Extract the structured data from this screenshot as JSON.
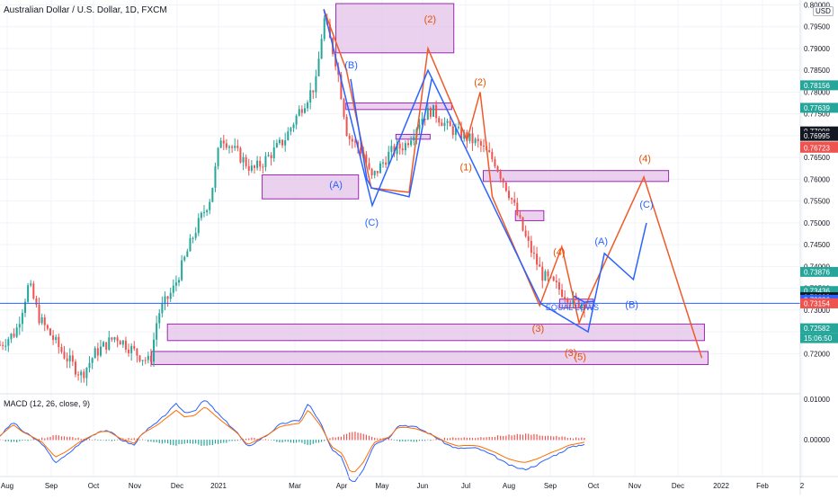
{
  "header": {
    "symbol_title": "Australian Dollar / U.S. Dollar, 1D, FXCM",
    "currency_badge": "USD"
  },
  "macd": {
    "title": "MACD (12, 26, close, 9)",
    "ticks": [
      "0.01000",
      "0.00000"
    ]
  },
  "colors": {
    "up_candle": "#26a69a",
    "down_candle": "#ef5350",
    "zone_fill": "#e1bee7",
    "zone_stroke": "#9c27b0",
    "orange_wave": "#f05a28",
    "blue_wave": "#2962ff",
    "wave_text_blue": "#2962ff",
    "wave_text_orange": "#e65100",
    "macd_line": "#2962ff",
    "signal_line": "#ff6d00",
    "horizontal_line": "#2962ff"
  },
  "chart_data": {
    "type": "candlestick",
    "y_range": [
      0.7112,
      0.8003
    ],
    "price_ticks": [
      "0.80000",
      "0.79500",
      "0.79000",
      "0.78500",
      "0.78000",
      "0.77500",
      "0.77000",
      "0.76500",
      "0.76000",
      "0.75500",
      "0.75000",
      "0.74500",
      "0.74000",
      "0.73500",
      "0.73000",
      "0.72500",
      "0.72000"
    ],
    "time_axis": [
      "Aug",
      "Sep",
      "Oct",
      "Nov",
      "Dec",
      "2021",
      "Mar",
      "Apr",
      "May",
      "Jun",
      "Jul",
      "Aug",
      "Sep",
      "Oct",
      "Nov",
      "Dec",
      "2022",
      "Feb",
      "2"
    ],
    "price_labels": [
      {
        "text": "0.78156",
        "price": 0.78156,
        "color": "#26a69a"
      },
      {
        "text": "0.77639",
        "price": 0.77639,
        "color": "#26a69a"
      },
      {
        "text": "0.77098",
        "price": 0.77098,
        "color": "#131722"
      },
      {
        "text": "0.76995",
        "price": 0.76995,
        "color": "#131722"
      },
      {
        "text": "0.76752",
        "price": 0.76752,
        "color": "#ef5350"
      },
      {
        "text": "0.76723",
        "price": 0.76723,
        "color": "#ef5350"
      },
      {
        "text": "0.73876",
        "price": 0.73876,
        "color": "#26a69a"
      },
      {
        "text": "0.73436",
        "price": 0.73436,
        "color": "#26a69a"
      },
      {
        "text": "0.73292",
        "price": 0.73292,
        "color": "#131722"
      },
      {
        "text": "0.73292",
        "price": 0.73292,
        "color": "#131722"
      },
      {
        "text": "0.73236",
        "price": 0.73236,
        "color": "#2962ff"
      },
      {
        "text": "0.73155",
        "price": 0.73155,
        "color": "#ef5350"
      },
      {
        "text": "0.73154",
        "price": 0.73154,
        "color": "#ef5350"
      },
      {
        "text": "0.72582",
        "price": 0.72582,
        "color": "#26a69a"
      }
    ],
    "countdown": "15:06:50",
    "horizontal_line_price": 0.73155,
    "zones": [
      {
        "t0": 0.638,
        "t1": 0.862,
        "p0": 0.8003,
        "p1": 0.789
      },
      {
        "t0": 0.498,
        "t1": 0.681,
        "p0": 0.761,
        "p1": 0.7555
      },
      {
        "t0": 0.657,
        "t1": 0.858,
        "p0": 0.7775,
        "p1": 0.776
      },
      {
        "t0": 0.752,
        "t1": 0.817,
        "p0": 0.7703,
        "p1": 0.7692
      },
      {
        "t0": 0.918,
        "t1": 1.27,
        "p0": 0.762,
        "p1": 0.7595
      },
      {
        "t0": 0.979,
        "t1": 1.033,
        "p0": 0.7528,
        "p1": 0.7505
      },
      {
        "t0": 0.318,
        "t1": 1.338,
        "p0": 0.7268,
        "p1": 0.723
      },
      {
        "t0": 0.288,
        "t1": 1.345,
        "p0": 0.7205,
        "p1": 0.7175
      },
      {
        "t0": 1.063,
        "t1": 1.127,
        "p0": 0.7325,
        "p1": 0.7305
      }
    ],
    "series": [
      {
        "name": "",
        "points": [
          [
            0.615,
            0.799
          ],
          [
            0.658,
            0.785
          ],
          [
            0.705,
            0.758
          ],
          [
            0.777,
            0.757
          ],
          [
            0.813,
            0.79
          ],
          [
            0.887,
            0.769
          ],
          [
            0.912,
            0.78
          ],
          [
            0.935,
            0.756
          ],
          [
            1.025,
            0.731
          ],
          [
            1.067,
            0.7445
          ],
          [
            1.1,
            0.727
          ],
          [
            1.119,
            0.733
          ],
          [
            1.223,
            0.7605
          ],
          [
            1.333,
            0.719
          ]
        ]
      },
      {
        "name": "",
        "points": [
          [
            0.615,
            0.799
          ],
          [
            0.707,
            0.754
          ],
          [
            0.813,
            0.785
          ],
          [
            1.027,
            0.7315
          ],
          [
            1.117,
            0.725
          ],
          [
            1.148,
            0.743
          ],
          [
            1.203,
            0.737
          ],
          [
            1.228,
            0.75
          ]
        ]
      },
      {
        "name": "",
        "points": [
          [
            0.666,
            0.783
          ],
          [
            0.697,
            0.76
          ],
          [
            0.706,
            0.758
          ],
          [
            0.777,
            0.756
          ],
          [
            0.82,
            0.783
          ]
        ]
      },
      {
        "name": "",
        "points": [
          [
            1.09,
            0.7332
          ],
          [
            1.1,
            0.7325
          ],
          [
            1.11,
            0.7318
          ],
          [
            1.127,
            0.732
          ]
        ]
      }
    ],
    "wave_labels": [
      {
        "text": "(2)",
        "t": 0.817,
        "p": 0.796,
        "color": "#e65100"
      },
      {
        "text": "(B)",
        "t": 0.667,
        "p": 0.7855,
        "color": "#2962ff"
      },
      {
        "text": "(2)",
        "t": 0.912,
        "p": 0.7815,
        "color": "#e65100"
      },
      {
        "text": "(1)",
        "t": 0.885,
        "p": 0.762,
        "color": "#e65100"
      },
      {
        "text": "(A)",
        "t": 0.638,
        "p": 0.758,
        "color": "#2962ff"
      },
      {
        "text": "(C)",
        "t": 0.706,
        "p": 0.7494,
        "color": "#2962ff"
      },
      {
        "text": "(4)",
        "t": 1.225,
        "p": 0.764,
        "color": "#e65100"
      },
      {
        "text": "(C)",
        "t": 1.228,
        "p": 0.7535,
        "color": "#2962ff"
      },
      {
        "text": "(A)",
        "t": 1.142,
        "p": 0.745,
        "color": "#2962ff"
      },
      {
        "text": "(4)",
        "t": 1.062,
        "p": 0.7425,
        "color": "#e65100"
      },
      {
        "text": "(B)",
        "t": 1.2,
        "p": 0.7305,
        "color": "#2962ff"
      },
      {
        "text": "EQUAL LOWS",
        "t": 1.087,
        "p": 0.73,
        "color": "#2962ff"
      },
      {
        "text": "(3)",
        "t": 1.022,
        "p": 0.725,
        "color": "#e65100"
      },
      {
        "text": "(3)",
        "t": 1.084,
        "p": 0.7195,
        "color": "#e65100"
      },
      {
        "text": "(5)",
        "t": 1.102,
        "p": 0.7185,
        "color": "#e65100"
      }
    ]
  }
}
